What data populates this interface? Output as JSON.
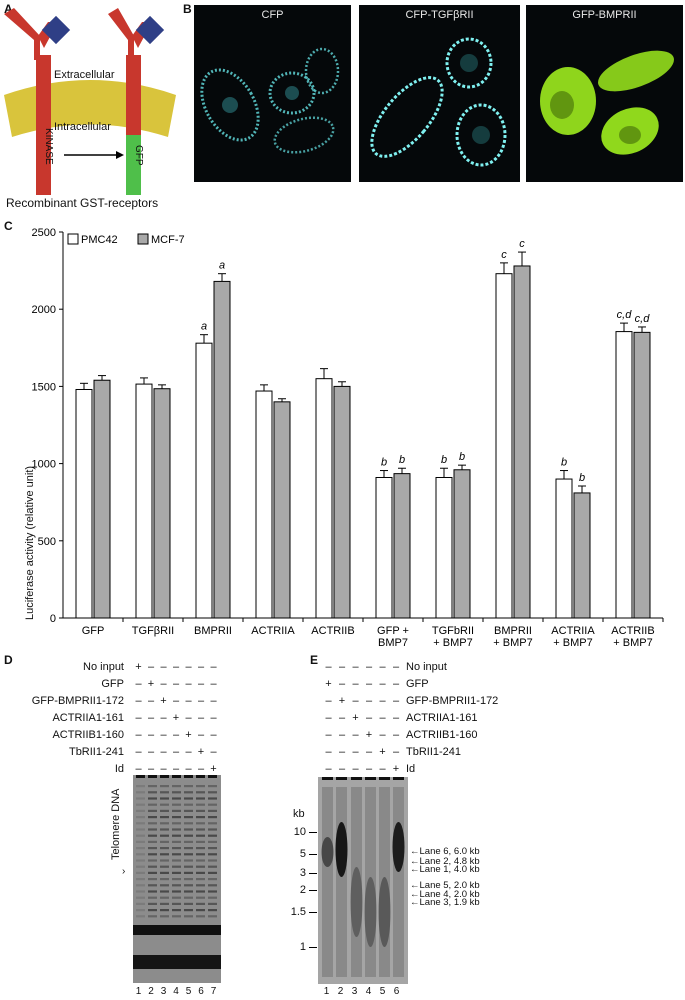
{
  "panels": {
    "A": "A",
    "B": "B",
    "C": "C",
    "D": "D",
    "E": "E"
  },
  "panelA": {
    "extracellular": "Extracellular",
    "intracellular": "Intracellular",
    "kinase": "KINASE",
    "gfp": "GFP",
    "caption": "Recombinant GST-receptors",
    "colors": {
      "receptor": "#c8372d",
      "ligand": "#2f3f86",
      "membrane": "#d9c43c",
      "gfp": "#4fbf4a"
    }
  },
  "panelB": {
    "images": [
      {
        "title": "CFP",
        "color": "#6fe3e6"
      },
      {
        "title": "CFP-TGFβRII",
        "color": "#7ff0f0"
      },
      {
        "title": "GFP-BMPRII",
        "color": "#9be01e"
      }
    ]
  },
  "chart_data": {
    "type": "bar",
    "ylabel": "Luciferase activity (relative unit)",
    "ylim": [
      0,
      2500
    ],
    "yticks": [
      0,
      500,
      1000,
      1500,
      2000,
      2500
    ],
    "categories": [
      [
        "GFP"
      ],
      [
        "TGFβRII"
      ],
      [
        "BMPRII"
      ],
      [
        "ACTRIIA"
      ],
      [
        "ACTRIIB"
      ],
      [
        "GFP +",
        "BMP7"
      ],
      [
        "TGFbRII",
        "+ BMP7"
      ],
      [
        "BMPRII",
        "+ BMP7"
      ],
      [
        "ACTRIIA",
        "+ BMP7"
      ],
      [
        "ACTRIIB",
        "+ BMP7"
      ]
    ],
    "series": [
      {
        "name": "PMC42",
        "color": "#ffffff",
        "values": [
          1480,
          1515,
          1780,
          1470,
          1550,
          910,
          910,
          2230,
          900,
          1855
        ],
        "errors": [
          40,
          40,
          55,
          40,
          65,
          45,
          60,
          70,
          55,
          55
        ],
        "annotations": [
          "",
          "",
          "a",
          "",
          "",
          "b",
          "b",
          "c",
          "b",
          "c,d"
        ]
      },
      {
        "name": "MCF-7",
        "color": "#a9a9a9",
        "values": [
          1540,
          1485,
          2180,
          1400,
          1500,
          935,
          960,
          2280,
          810,
          1850
        ],
        "errors": [
          30,
          25,
          50,
          20,
          30,
          35,
          30,
          90,
          45,
          35
        ],
        "annotations": [
          "",
          "",
          "a",
          "",
          "",
          "b",
          "b",
          "c",
          "b",
          "c,d"
        ]
      }
    ],
    "legend_position": "top-left"
  },
  "panelD": {
    "rows": [
      {
        "label": "No input",
        "marks": [
          "+",
          "–",
          "–",
          "–",
          "–",
          "–",
          "–"
        ]
      },
      {
        "label": "GFP",
        "marks": [
          "–",
          "+",
          "–",
          "–",
          "–",
          "–",
          "–"
        ]
      },
      {
        "label": "GFP-BMPRII1-172",
        "marks": [
          "–",
          "–",
          "+",
          "–",
          "–",
          "–",
          "–"
        ]
      },
      {
        "label": "ACTRIIA1-161",
        "marks": [
          "–",
          "–",
          "–",
          "+",
          "–",
          "–",
          "–"
        ]
      },
      {
        "label": "ACTRIIB1-160",
        "marks": [
          "–",
          "–",
          "–",
          "–",
          "+",
          "–",
          "–"
        ]
      },
      {
        "label": "TbRII1-241",
        "marks": [
          "–",
          "–",
          "–",
          "–",
          "–",
          "+",
          "–"
        ]
      },
      {
        "label": "Id",
        "marks": [
          "–",
          "–",
          "–",
          "–",
          "–",
          "–",
          "+"
        ]
      }
    ],
    "side_label": "Telomere DNA",
    "lanes": [
      "1",
      "2",
      "3",
      "4",
      "5",
      "6",
      "7"
    ]
  },
  "panelE": {
    "rows": [
      {
        "label": "No input",
        "marks": [
          "–",
          "–",
          "–",
          "–",
          "–",
          "–"
        ]
      },
      {
        "label": "GFP",
        "marks": [
          "+",
          "–",
          "–",
          "–",
          "–",
          "–"
        ]
      },
      {
        "label": "GFP-BMPRII1-172",
        "marks": [
          "–",
          "+",
          "–",
          "–",
          "–",
          "–"
        ]
      },
      {
        "label": "ACTRIIA1-161",
        "marks": [
          "–",
          "–",
          "+",
          "–",
          "–",
          "–"
        ]
      },
      {
        "label": "ACTRIIB1-160",
        "marks": [
          "–",
          "–",
          "–",
          "+",
          "–",
          "–"
        ]
      },
      {
        "label": "TbRII1-241",
        "marks": [
          "–",
          "–",
          "–",
          "–",
          "+",
          "–"
        ]
      },
      {
        "label": "Id",
        "marks": [
          "–",
          "–",
          "–",
          "–",
          "–",
          "+"
        ]
      }
    ],
    "kb_label": "kb",
    "markers": [
      "10",
      "5",
      "3",
      "2",
      "1.5",
      "1"
    ],
    "annotations": [
      "Lane 6, 6.0 kb",
      "Lane 2, 4.8 kb",
      "Lane 1, 4.0 kb",
      "Lane 5, 2.0 kb",
      "Lane 4, 2.0 kb",
      "Lane 3, 1.9 kb"
    ],
    "lanes": [
      "1",
      "2",
      "3",
      "4",
      "5",
      "6"
    ]
  }
}
